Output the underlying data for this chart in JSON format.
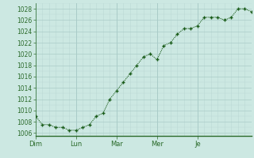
{
  "background_color": "#cce8e2",
  "plot_bg_color": "#cce8e2",
  "grid_color_major": "#aaccc8",
  "grid_color_minor": "#bbd8d4",
  "line_color": "#1a5c1a",
  "marker_color": "#1a5c1a",
  "tick_label_color": "#2a6a2a",
  "axis_line_color": "#2a6a2a",
  "ylim": [
    1005.5,
    1029
  ],
  "yticks": [
    1006,
    1008,
    1010,
    1012,
    1014,
    1016,
    1018,
    1020,
    1022,
    1024,
    1026,
    1028
  ],
  "x_day_labels": [
    "Dim",
    "Lun",
    "Mar",
    "Mer",
    "Je"
  ],
  "x_day_positions": [
    0,
    6,
    12,
    18,
    24
  ],
  "data_y": [
    1009,
    1007.5,
    1007.5,
    1007,
    1007,
    1006.5,
    1006.5,
    1007,
    1007.5,
    1009,
    1009.5,
    1012,
    1013.5,
    1015,
    1016.5,
    1018,
    1019.5,
    1020,
    1019,
    1021.5,
    1022,
    1023.5,
    1024.5,
    1024.5,
    1025,
    1026.5,
    1026.5,
    1026.5,
    1026,
    1026.5,
    1028,
    1028,
    1027.5
  ],
  "n_points": 33,
  "figsize": [
    3.2,
    2.0
  ],
  "dpi": 100
}
